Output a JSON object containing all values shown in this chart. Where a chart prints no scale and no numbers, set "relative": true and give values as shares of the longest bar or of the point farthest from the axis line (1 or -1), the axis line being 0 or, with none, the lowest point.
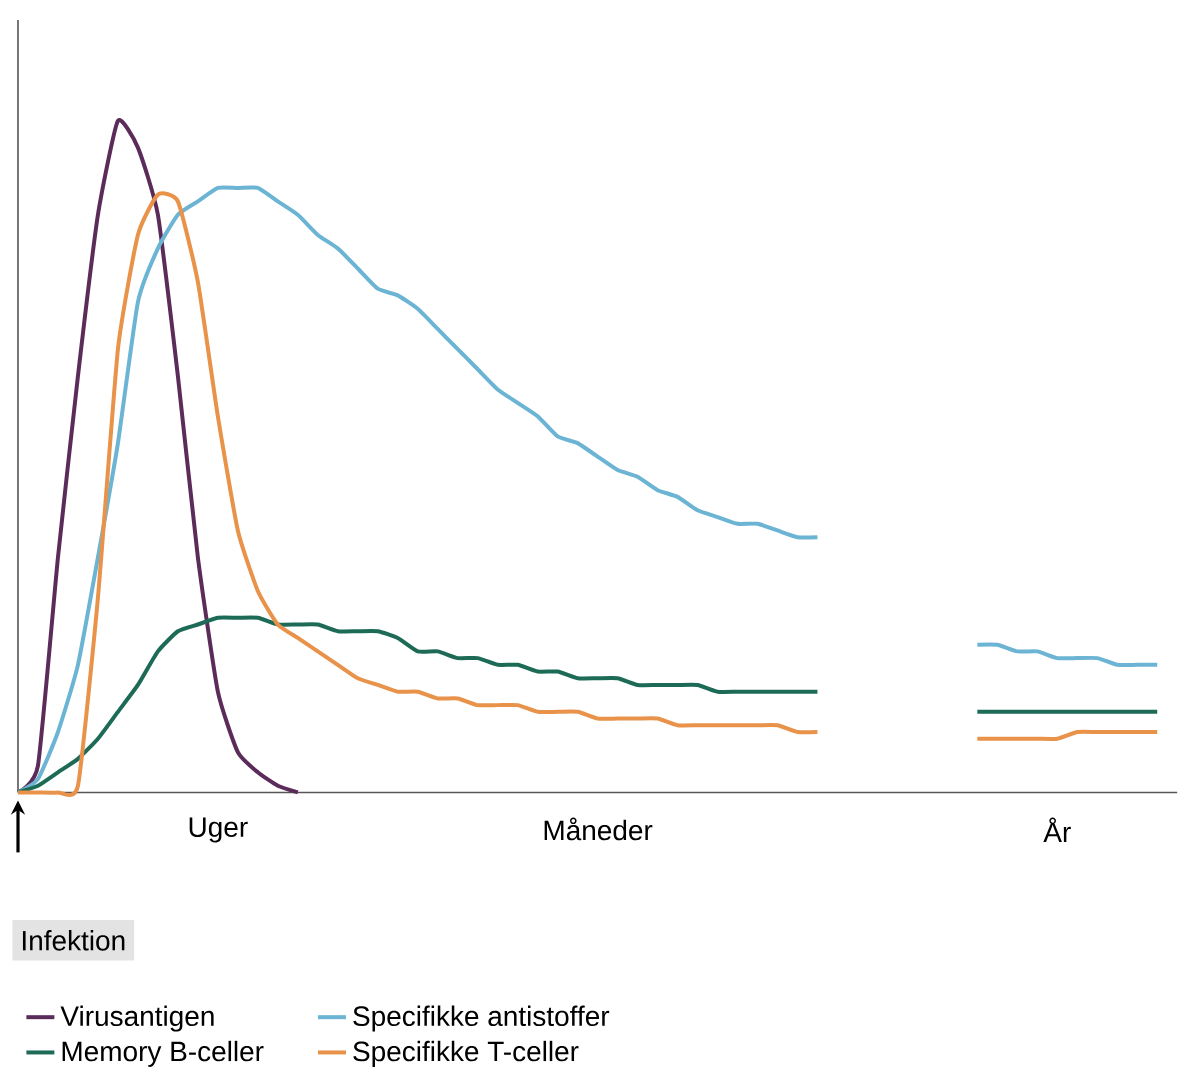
{
  "chart_data": {
    "type": "line",
    "relative": true,
    "legend": "bottom",
    "categories": [
      null,
      null,
      null,
      null,
      null,
      null,
      null,
      null,
      null,
      null,
      "Uger",
      null,
      null,
      null,
      null,
      null,
      null,
      null,
      null,
      null,
      null,
      null,
      null,
      null,
      null,
      null,
      null,
      null,
      null,
      "Måneder",
      null,
      null,
      null,
      null,
      null,
      null,
      null,
      null,
      null,
      null,
      null,
      null,
      null,
      null,
      null,
      null,
      null,
      null,
      null,
      null,
      null,
      null,
      "År",
      null,
      null,
      null,
      null,
      null
    ],
    "annotations": [
      "Infektion"
    ],
    "series": [
      {
        "name": "Virusantigen",
        "color": "#5b2c5a",
        "values": [
          0,
          0.04,
          0.35,
          0.62,
          0.86,
          1,
          0.96,
          0.86,
          0.62,
          0.35,
          0.15,
          0.06,
          0.03,
          0.01,
          0,
          null,
          null,
          null,
          null,
          null,
          null,
          null,
          null,
          null,
          null,
          null,
          null,
          null,
          null,
          null,
          null,
          null,
          null,
          null,
          null,
          null,
          null,
          null,
          null,
          null,
          null,
          null,
          null,
          null,
          null,
          null,
          null,
          null,
          null,
          null,
          null,
          null,
          null,
          null,
          null,
          null,
          null,
          null
        ]
      },
      {
        "name": "Specifikke antistoffer",
        "color": "#6cb4d4",
        "values": [
          0,
          0.02,
          0.09,
          0.19,
          0.35,
          0.52,
          0.73,
          0.81,
          0.86,
          0.88,
          0.9,
          0.9,
          0.9,
          0.88,
          0.86,
          0.83,
          0.81,
          0.78,
          0.75,
          0.74,
          0.72,
          0.69,
          0.66,
          0.63,
          0.6,
          0.58,
          0.56,
          0.53,
          0.52,
          0.5,
          0.48,
          0.47,
          0.45,
          0.44,
          0.42,
          0.41,
          0.4,
          0.4,
          0.39,
          0.38,
          0.38,
          null,
          null,
          null,
          null,
          null,
          null,
          null,
          0.22,
          0.22,
          0.21,
          0.21,
          0.2,
          0.2,
          0.2,
          0.19,
          0.19,
          0.19
        ]
      },
      {
        "name": "Memory B-celler",
        "color": "#1d6b57",
        "values": [
          0,
          0.01,
          0.03,
          0.05,
          0.08,
          0.12,
          0.16,
          0.21,
          0.24,
          0.25,
          0.26,
          0.26,
          0.26,
          0.25,
          0.25,
          0.25,
          0.24,
          0.24,
          0.24,
          0.23,
          0.21,
          0.21,
          0.2,
          0.2,
          0.19,
          0.19,
          0.18,
          0.18,
          0.17,
          0.17,
          0.17,
          0.16,
          0.16,
          0.16,
          0.16,
          0.15,
          0.15,
          0.15,
          0.15,
          0.15,
          0.15,
          null,
          null,
          null,
          null,
          null,
          null,
          null,
          0.12,
          0.12,
          0.12,
          0.12,
          0.12,
          0.12,
          0.12,
          0.12,
          0.12,
          0.12
        ]
      },
      {
        "name": "Specifikke T-celler",
        "color": "#e8924a",
        "values": [
          0,
          0,
          0,
          0.01,
          0.29,
          0.66,
          0.83,
          0.89,
          0.88,
          0.76,
          0.56,
          0.39,
          0.3,
          0.25,
          0.23,
          0.21,
          0.19,
          0.17,
          0.16,
          0.15,
          0.15,
          0.14,
          0.14,
          0.13,
          0.13,
          0.13,
          0.12,
          0.12,
          0.12,
          0.11,
          0.11,
          0.11,
          0.11,
          0.1,
          0.1,
          0.1,
          0.1,
          0.1,
          0.1,
          0.09,
          0.09,
          null,
          null,
          null,
          null,
          null,
          null,
          null,
          0.08,
          0.08,
          0.08,
          0.08,
          0.08,
          0.09,
          0.09,
          0.09,
          0.09,
          0.09
        ]
      }
    ]
  }
}
